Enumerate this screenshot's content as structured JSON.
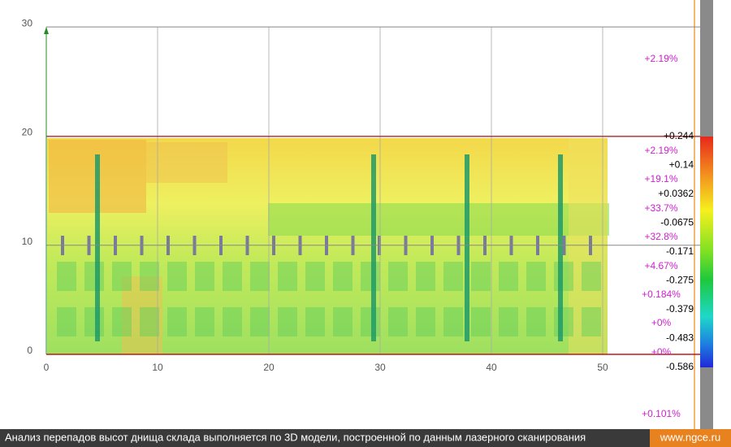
{
  "axes": {
    "xticks": [
      0,
      10,
      20,
      30,
      40,
      50
    ],
    "yticks": [
      0,
      10,
      20,
      30
    ]
  },
  "scale_labels": [
    "+0.244",
    "+0.14",
    "+0.0362",
    "-0.0675",
    "-0.171",
    "-0.275",
    "-0.379",
    "-0.483",
    "-0.586"
  ],
  "percent_labels": [
    "+2.19%",
    "+2.19%",
    "+19.1%",
    "+33.7%",
    "+32.8%",
    "+4.67%",
    "+0.184%",
    "+0%",
    "+0%",
    "+0.101%"
  ],
  "caption": "Анализ перепадов высот днища склада выполняется по 3D модели, построенной по данным лазерного сканирования",
  "site": "www.ngce.ru"
}
